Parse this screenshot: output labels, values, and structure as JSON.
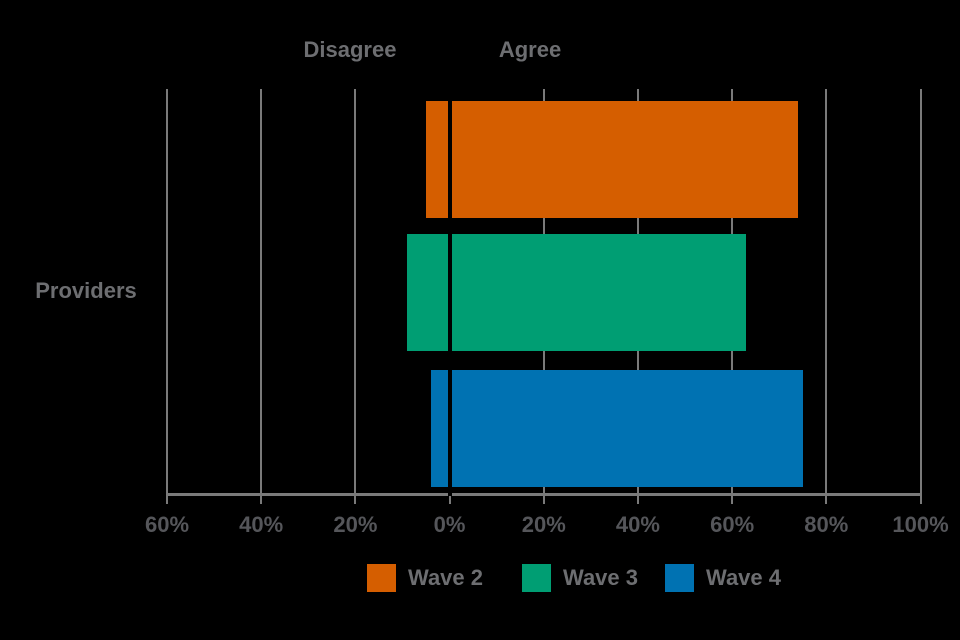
{
  "chart_data": {
    "type": "bar",
    "variant": "horizontal-diverging",
    "category_label": "Providers",
    "side_labels": {
      "left": "Disagree",
      "right": "Agree"
    },
    "series": [
      {
        "name": "Wave 2",
        "color": "#D55E00",
        "disagree": 5,
        "agree": 74
      },
      {
        "name": "Wave 3",
        "color": "#009E73",
        "disagree": 9,
        "agree": 63
      },
      {
        "name": "Wave 4",
        "color": "#0072B2",
        "disagree": 4,
        "agree": 75
      }
    ],
    "axis": {
      "range": [
        -60,
        100
      ],
      "ticks": [
        -60,
        -40,
        -20,
        0,
        20,
        40,
        60,
        80,
        100
      ],
      "tick_labels": [
        "60%",
        "40%",
        "20%",
        "0%",
        "20%",
        "40%",
        "60%",
        "80%",
        "100%"
      ],
      "grid": true
    },
    "legend": {
      "position": "bottom",
      "entries": [
        "Wave 2",
        "Wave 3",
        "Wave 4"
      ]
    },
    "colors": {
      "background": "#000000",
      "gridline": "#7A7A7A",
      "axis": "#7A7A7A",
      "zero_line": "#000000",
      "header_text": "#6D6E71",
      "tick_text": "#55565A"
    }
  }
}
